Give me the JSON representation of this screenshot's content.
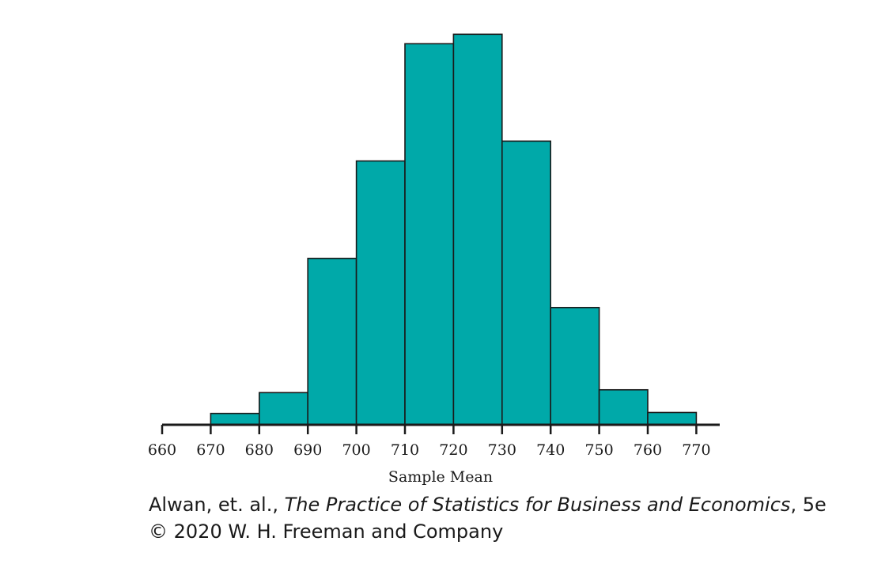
{
  "chart_data": {
    "type": "bar",
    "histogram": true,
    "bin_edges": [
      660,
      670,
      680,
      690,
      700,
      710,
      720,
      730,
      740,
      750,
      760,
      770
    ],
    "values": [
      0,
      1.2,
      3.4,
      17.6,
      27.9,
      40.3,
      41.3,
      30.0,
      12.4,
      3.7,
      1.3
    ],
    "xlabel": "Sample Mean",
    "ylabel": "",
    "xlim": [
      660,
      775
    ],
    "ylim": [
      0,
      43
    ],
    "x_ticks": [
      "660",
      "670",
      "680",
      "690",
      "700",
      "710",
      "720",
      "730",
      "740",
      "750",
      "760",
      "770"
    ],
    "bar_color": "#00A9A9",
    "edge_color": "#1a1a1a",
    "grid": false
  },
  "credit": {
    "authors": "Alwan, et. al., ",
    "book_title": "The Practice of Statistics for Business and Economics",
    "edition": ", 5e",
    "copyright": "© 2020 W. H. Freeman and Company"
  }
}
